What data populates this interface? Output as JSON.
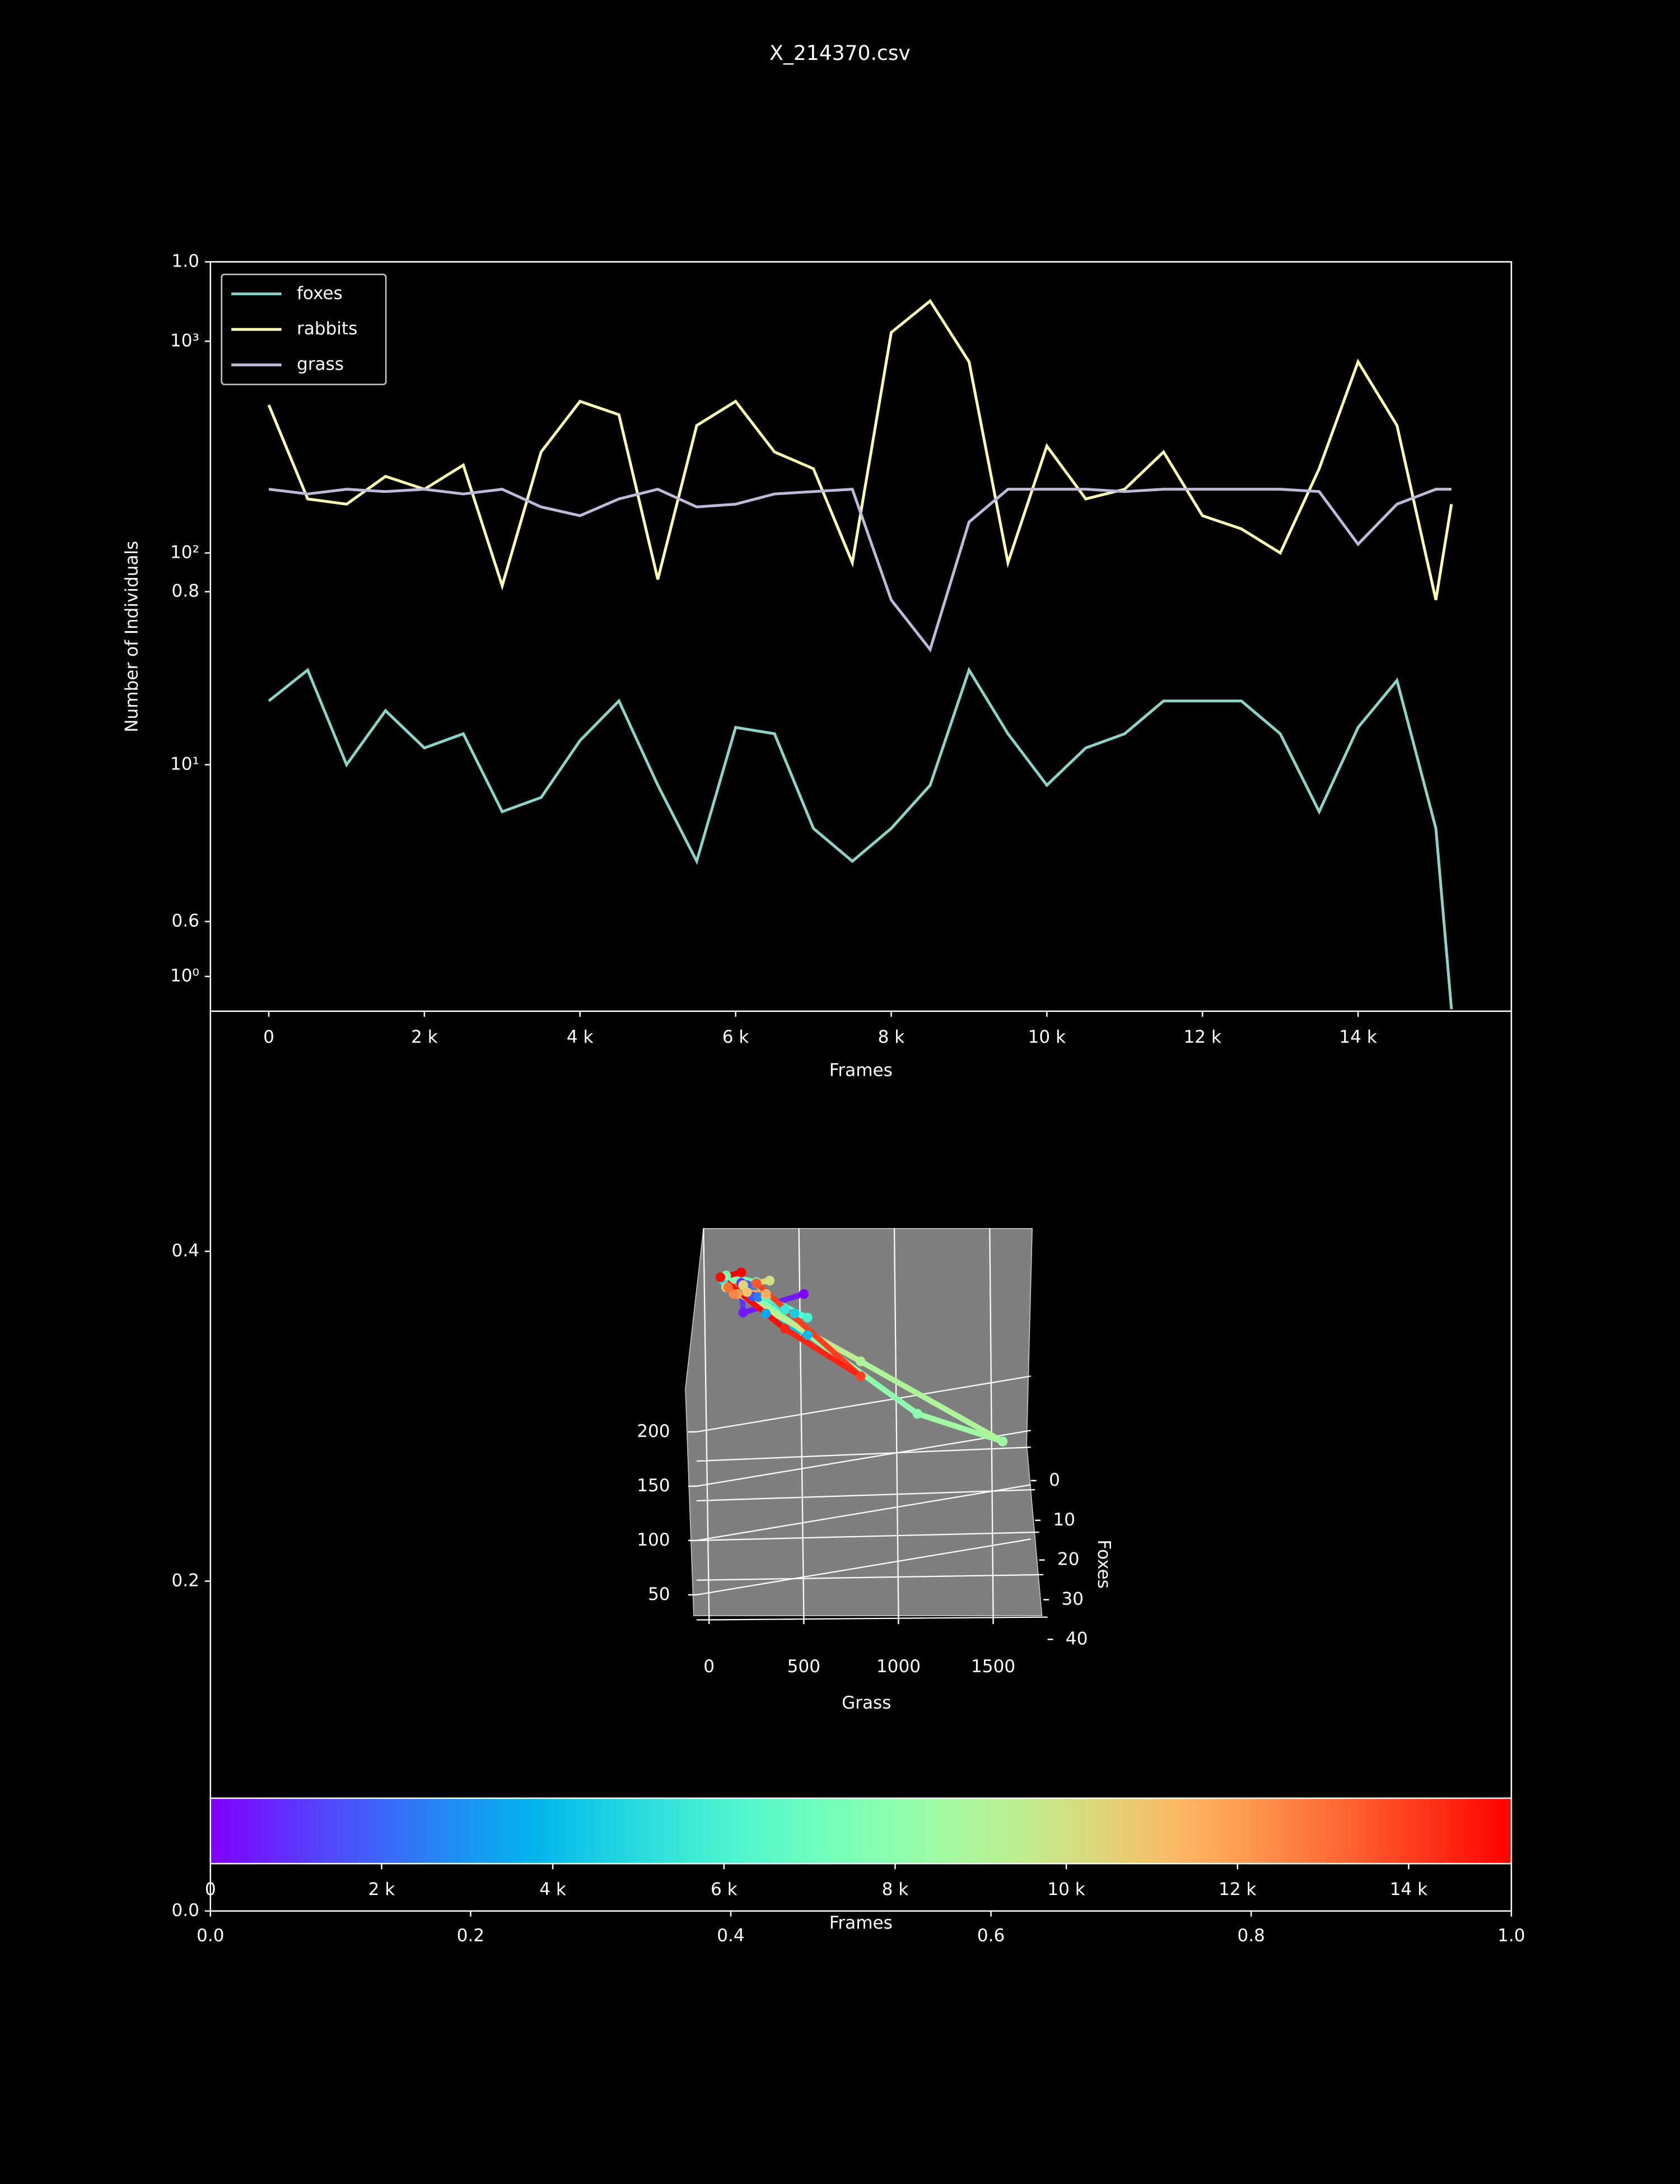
{
  "chart_data": [
    {
      "type": "axes",
      "xlim": [
        0,
        1
      ],
      "ylim": [
        0,
        1
      ],
      "xticks": [
        {
          "value": 0,
          "label": "0.0"
        },
        {
          "value": 0.2,
          "label": "0.2"
        },
        {
          "value": 0.4,
          "label": "0.4"
        },
        {
          "value": 0.6,
          "label": "0.6"
        },
        {
          "value": 0.8,
          "label": "0.8"
        },
        {
          "value": 1,
          "label": "1.0"
        }
      ],
      "yticks": [
        {
          "value": 0,
          "label": "0.0"
        },
        {
          "value": 0.2,
          "label": "0.2"
        },
        {
          "value": 0.4,
          "label": "0.4"
        },
        {
          "value": 0.6,
          "label": "0.6"
        },
        {
          "value": 0.8,
          "label": "0.8"
        },
        {
          "value": 1,
          "label": "1.0"
        }
      ]
    },
    {
      "type": "line",
      "title": "X_214370.csv",
      "xlabel": "Frames",
      "ylabel": "Number of Individuals",
      "log_y": true,
      "legend": "upper left",
      "xlim": [
        -750,
        15970
      ],
      "ylim": [
        0.685,
        2371
      ],
      "xticks": [
        0,
        {
          "value": 2000,
          "label": "2 k"
        },
        {
          "value": 4000,
          "label": "4 k"
        },
        {
          "value": 6000,
          "label": "6 k"
        },
        {
          "value": 8000,
          "label": "8 k"
        },
        {
          "value": 10000,
          "label": "10 k"
        },
        {
          "value": 12000,
          "label": "12 k"
        },
        {
          "value": 14000,
          "label": "14 k"
        }
      ],
      "yticks": [
        {
          "value": 1,
          "label": "10⁰"
        },
        {
          "value": 10,
          "label": "10¹"
        },
        {
          "value": 100,
          "label": "10²"
        },
        {
          "value": 1000,
          "label": "10³"
        }
      ],
      "x": [
        0,
        500,
        1000,
        1500,
        2000,
        2500,
        3000,
        3500,
        4000,
        4500,
        5000,
        5500,
        6000,
        6500,
        7000,
        7500,
        8000,
        8500,
        9000,
        9500,
        10000,
        10500,
        11000,
        11500,
        12000,
        12500,
        13000,
        13500,
        14000,
        14500,
        15000,
        15200
      ],
      "series": [
        {
          "name": "foxes",
          "color": "#8dd3c7",
          "values": [
            20,
            28,
            10,
            18,
            12,
            14,
            6,
            7,
            13,
            20,
            8,
            3.5,
            15,
            14,
            5,
            3.5,
            5,
            8,
            28,
            14,
            8,
            12,
            14,
            20,
            20,
            20,
            14,
            6,
            15,
            25,
            5,
            0.7
          ]
        },
        {
          "name": "rabbits",
          "color": "#ffffb3",
          "values": [
            500,
            180,
            170,
            230,
            200,
            260,
            70,
            300,
            520,
            450,
            75,
            400,
            520,
            300,
            250,
            90,
            1100,
            1550,
            800,
            90,
            320,
            180,
            200,
            300,
            150,
            130,
            100,
            250,
            800,
            400,
            60,
            170
          ]
        },
        {
          "name": "grass",
          "color": "#bebada",
          "values": [
            200,
            190,
            200,
            195,
            200,
            190,
            200,
            165,
            150,
            180,
            200,
            165,
            170,
            190,
            195,
            200,
            60,
            35,
            140,
            200,
            200,
            200,
            195,
            200,
            200,
            200,
            200,
            195,
            110,
            170,
            200,
            200
          ]
        }
      ]
    },
    {
      "type": "line3d",
      "xlabel": "Grass",
      "ylabel": "Foxes",
      "xticks": [
        0,
        500,
        1000,
        1500
      ],
      "yticks": [
        0,
        10,
        20,
        30,
        40
      ],
      "zticks": [
        50,
        100,
        150,
        200
      ]
    },
    {
      "type": "colorbar",
      "colormap": "rainbow",
      "xlabel": "Frames",
      "xlim": [
        0,
        15200
      ],
      "xticks": [
        0,
        {
          "value": 2000,
          "label": "2 k"
        },
        {
          "value": 4000,
          "label": "4 k"
        },
        {
          "value": 6000,
          "label": "6 k"
        },
        {
          "value": 8000,
          "label": "8 k"
        },
        {
          "value": 10000,
          "label": "10 k"
        },
        {
          "value": 12000,
          "label": "12 k"
        },
        {
          "value": 14000,
          "label": "14 k"
        }
      ]
    }
  ]
}
